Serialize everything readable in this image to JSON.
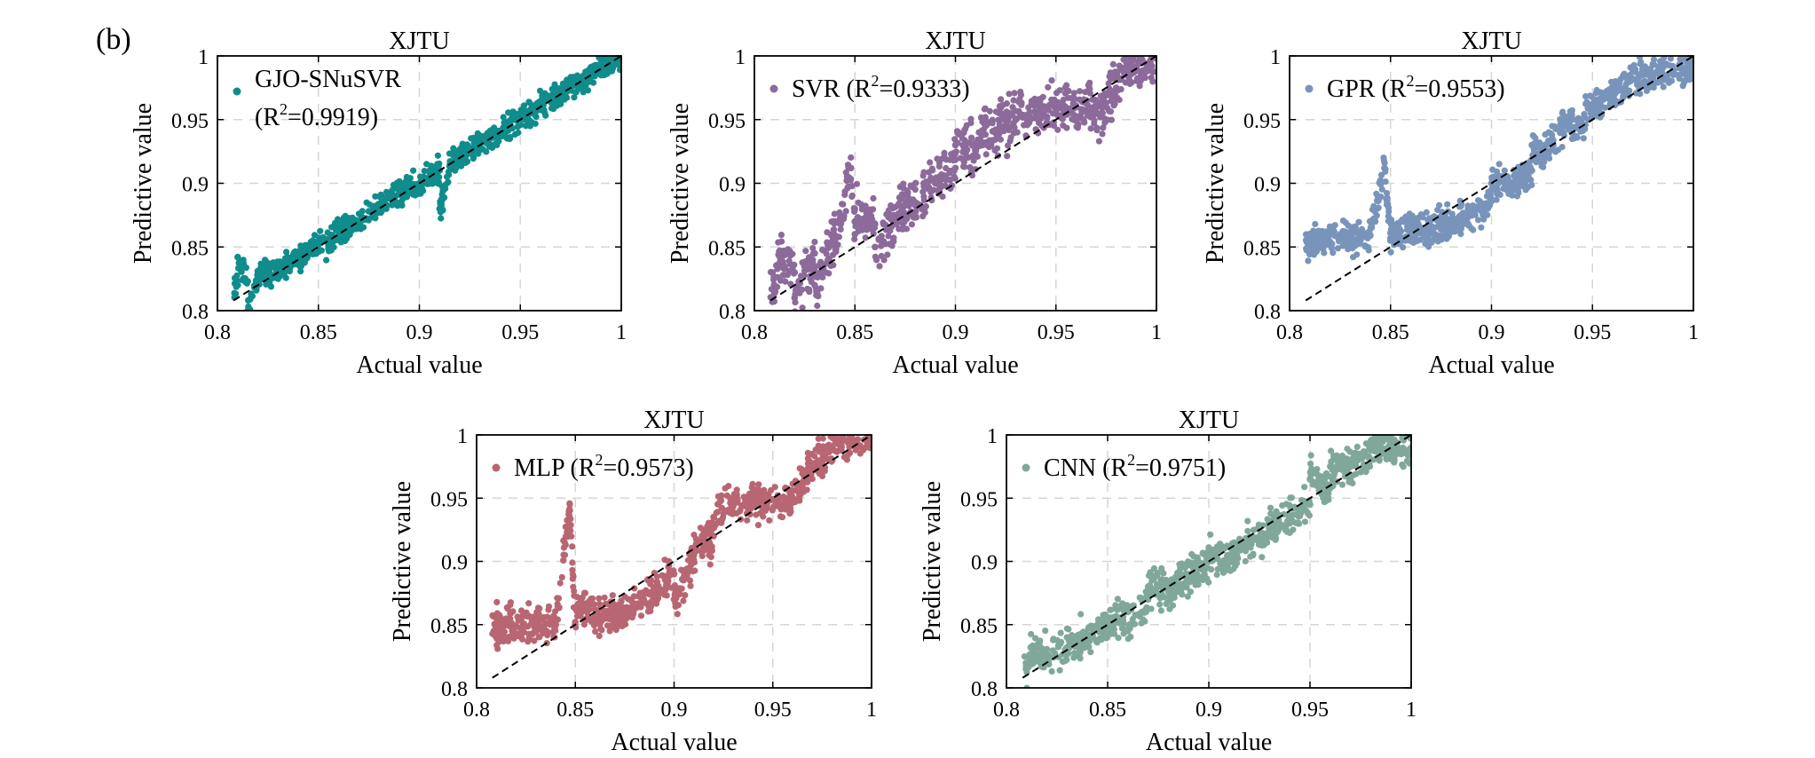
{
  "figure": {
    "panel_label": "(b)"
  },
  "chart_data": [
    {
      "type": "scatter",
      "title": "XJTU",
      "xlabel": "Actual value",
      "ylabel": "Predictive value",
      "xlim": [
        0.8,
        1.0
      ],
      "ylim": [
        0.8,
        1.0
      ],
      "xticks": [
        "0.8",
        "0.85",
        "0.9",
        "0.95",
        "1"
      ],
      "yticks": [
        "0.8",
        "0.85",
        "0.9",
        "0.95",
        "1"
      ],
      "grid": true,
      "color": "#108C8C",
      "legend": {
        "position": "top-left",
        "main": "GJO-SNuSVR",
        "second_line_pre": "(R",
        "sup": "2",
        "post": "=0.9919)"
      },
      "r2": 0.9919,
      "reference_line": {
        "from": [
          0.8,
          0.8
        ],
        "to": [
          1.0,
          1.0
        ],
        "style": "dashed"
      },
      "points": [
        [
          0.81,
          0.82
        ],
        [
          0.815,
          0.823
        ],
        [
          0.82,
          0.827
        ],
        [
          0.825,
          0.83
        ],
        [
          0.83,
          0.829
        ],
        [
          0.835,
          0.838
        ],
        [
          0.84,
          0.84
        ],
        [
          0.845,
          0.846
        ],
        [
          0.85,
          0.852
        ],
        [
          0.855,
          0.851
        ],
        [
          0.86,
          0.862
        ],
        [
          0.865,
          0.866
        ],
        [
          0.87,
          0.868
        ],
        [
          0.875,
          0.878
        ],
        [
          0.88,
          0.88
        ],
        [
          0.885,
          0.889
        ],
        [
          0.89,
          0.892
        ],
        [
          0.895,
          0.896
        ],
        [
          0.9,
          0.9
        ],
        [
          0.905,
          0.905
        ],
        [
          0.91,
          0.91
        ],
        [
          0.915,
          0.914
        ],
        [
          0.92,
          0.92
        ],
        [
          0.925,
          0.926
        ],
        [
          0.93,
          0.93
        ],
        [
          0.935,
          0.937
        ],
        [
          0.94,
          0.94
        ],
        [
          0.945,
          0.946
        ],
        [
          0.95,
          0.951
        ],
        [
          0.955,
          0.955
        ],
        [
          0.96,
          0.962
        ],
        [
          0.965,
          0.964
        ],
        [
          0.97,
          0.97
        ],
        [
          0.975,
          0.976
        ],
        [
          0.98,
          0.981
        ],
        [
          0.985,
          0.985
        ],
        [
          0.99,
          0.99
        ],
        [
          0.995,
          0.994
        ],
        [
          1.0,
          0.992
        ],
        [
          0.81,
          0.842
        ],
        [
          0.815,
          0.8
        ],
        [
          0.998,
          0.998
        ],
        [
          0.91,
          0.88
        ]
      ]
    },
    {
      "type": "scatter",
      "title": "XJTU",
      "xlabel": "Actual value",
      "ylabel": "Predictive value",
      "xlim": [
        0.8,
        1.0
      ],
      "ylim": [
        0.8,
        1.0
      ],
      "xticks": [
        "0.8",
        "0.85",
        "0.9",
        "0.95",
        "1"
      ],
      "yticks": [
        "0.8",
        "0.85",
        "0.9",
        "0.95",
        "1"
      ],
      "grid": true,
      "color": "#8C6A9A",
      "legend": {
        "position": "top-left",
        "main": "",
        "second_line_pre": "SVR (R",
        "sup": "2",
        "post": "=0.9333)"
      },
      "r2": 0.9333,
      "reference_line": {
        "from": [
          0.8,
          0.8
        ],
        "to": [
          1.0,
          1.0
        ],
        "style": "dashed"
      },
      "points": [
        [
          0.81,
          0.82
        ],
        [
          0.82,
          0.83
        ],
        [
          0.83,
          0.845
        ],
        [
          0.84,
          0.855
        ],
        [
          0.85,
          0.86
        ],
        [
          0.86,
          0.868
        ],
        [
          0.87,
          0.873
        ],
        [
          0.88,
          0.885
        ],
        [
          0.89,
          0.9
        ],
        [
          0.9,
          0.912
        ],
        [
          0.91,
          0.925
        ],
        [
          0.92,
          0.942
        ],
        [
          0.93,
          0.95
        ],
        [
          0.94,
          0.955
        ],
        [
          0.95,
          0.959
        ],
        [
          0.96,
          0.961
        ],
        [
          0.97,
          0.965
        ],
        [
          0.98,
          0.975
        ],
        [
          0.99,
          0.99
        ],
        [
          1.0,
          0.998
        ],
        [
          0.82,
          0.81
        ],
        [
          0.83,
          0.82
        ],
        [
          0.85,
          0.88
        ],
        [
          0.86,
          0.85
        ],
        [
          0.9,
          0.93
        ],
        [
          0.915,
          0.945
        ],
        [
          0.985,
          0.995
        ],
        [
          0.97,
          0.955
        ],
        [
          0.848,
          0.912
        ],
        [
          0.812,
          0.844
        ]
      ]
    },
    {
      "type": "scatter",
      "title": "XJTU",
      "xlabel": "Actual value",
      "ylabel": "Predictive value",
      "xlim": [
        0.8,
        1.0
      ],
      "ylim": [
        0.8,
        1.0
      ],
      "xticks": [
        "0.8",
        "0.85",
        "0.9",
        "0.95",
        "1"
      ],
      "yticks": [
        "0.8",
        "0.85",
        "0.9",
        "0.95",
        "1"
      ],
      "grid": true,
      "color": "#7894BA",
      "legend": {
        "position": "top-left",
        "main": "",
        "second_line_pre": "GPR (R",
        "sup": "2",
        "post": "=0.9553)"
      },
      "r2": 0.9553,
      "reference_line": {
        "from": [
          0.8,
          0.8
        ],
        "to": [
          1.0,
          1.0
        ],
        "style": "dashed"
      },
      "points": [
        [
          0.81,
          0.852
        ],
        [
          0.82,
          0.854
        ],
        [
          0.83,
          0.857
        ],
        [
          0.84,
          0.859
        ],
        [
          0.85,
          0.861
        ],
        [
          0.86,
          0.862
        ],
        [
          0.87,
          0.864
        ],
        [
          0.88,
          0.869
        ],
        [
          0.89,
          0.876
        ],
        [
          0.9,
          0.886
        ],
        [
          0.91,
          0.897
        ],
        [
          0.92,
          0.91
        ],
        [
          0.925,
          0.92
        ],
        [
          0.93,
          0.935
        ],
        [
          0.935,
          0.945
        ],
        [
          0.94,
          0.95
        ],
        [
          0.95,
          0.96
        ],
        [
          0.96,
          0.972
        ],
        [
          0.97,
          0.982
        ],
        [
          0.98,
          0.986
        ],
        [
          0.99,
          0.989
        ],
        [
          1.0,
          0.991
        ],
        [
          0.9,
          0.9
        ],
        [
          0.92,
          0.93
        ],
        [
          0.94,
          0.935
        ],
        [
          0.847,
          0.912
        ]
      ]
    },
    {
      "type": "scatter",
      "title": "XJTU",
      "xlabel": "Actual value",
      "ylabel": "Predictive value",
      "xlim": [
        0.8,
        1.0
      ],
      "ylim": [
        0.8,
        1.0
      ],
      "xticks": [
        "0.8",
        "0.85",
        "0.9",
        "0.95",
        "1"
      ],
      "yticks": [
        "0.8",
        "0.85",
        "0.9",
        "0.95",
        "1"
      ],
      "grid": true,
      "color": "#B86672",
      "legend": {
        "position": "top-left",
        "main": "",
        "second_line_pre": "MLP (R",
        "sup": "2",
        "post": "=0.9573)"
      },
      "r2": 0.9573,
      "reference_line": {
        "from": [
          0.8,
          0.8
        ],
        "to": [
          1.0,
          1.0
        ],
        "style": "dashed"
      },
      "points": [
        [
          0.81,
          0.849
        ],
        [
          0.82,
          0.849
        ],
        [
          0.83,
          0.849
        ],
        [
          0.84,
          0.85
        ],
        [
          0.85,
          0.852
        ],
        [
          0.86,
          0.856
        ],
        [
          0.87,
          0.86
        ],
        [
          0.88,
          0.866
        ],
        [
          0.89,
          0.878
        ],
        [
          0.9,
          0.89
        ],
        [
          0.91,
          0.905
        ],
        [
          0.92,
          0.92
        ],
        [
          0.93,
          0.948
        ],
        [
          0.94,
          0.949
        ],
        [
          0.95,
          0.949
        ],
        [
          0.96,
          0.95
        ],
        [
          0.965,
          0.96
        ],
        [
          0.97,
          0.975
        ],
        [
          0.98,
          0.99
        ],
        [
          0.99,
          0.998
        ],
        [
          1.0,
          1.0
        ],
        [
          0.85,
          0.863
        ],
        [
          0.87,
          0.852
        ],
        [
          0.9,
          0.87
        ],
        [
          0.92,
          0.935
        ],
        [
          0.847,
          0.941
        ]
      ]
    },
    {
      "type": "scatter",
      "title": "XJTU",
      "xlabel": "Actual value",
      "ylabel": "Predictive value",
      "xlim": [
        0.8,
        1.0
      ],
      "ylim": [
        0.8,
        1.0
      ],
      "xticks": [
        "0.8",
        "0.85",
        "0.9",
        "0.95",
        "1"
      ],
      "yticks": [
        "0.8",
        "0.85",
        "0.9",
        "0.95",
        "1"
      ],
      "grid": true,
      "color": "#80A89A",
      "legend": {
        "position": "top-left",
        "main": "",
        "second_line_pre": "CNN (R",
        "sup": "2",
        "post": "=0.9751)"
      },
      "r2": 0.9751,
      "reference_line": {
        "from": [
          0.8,
          0.8
        ],
        "to": [
          1.0,
          1.0
        ],
        "style": "dashed"
      },
      "points": [
        [
          0.81,
          0.815
        ],
        [
          0.82,
          0.825
        ],
        [
          0.83,
          0.832
        ],
        [
          0.84,
          0.84
        ],
        [
          0.85,
          0.85
        ],
        [
          0.86,
          0.86
        ],
        [
          0.87,
          0.87
        ],
        [
          0.88,
          0.878
        ],
        [
          0.89,
          0.89
        ],
        [
          0.9,
          0.9
        ],
        [
          0.91,
          0.905
        ],
        [
          0.92,
          0.915
        ],
        [
          0.93,
          0.925
        ],
        [
          0.94,
          0.935
        ],
        [
          0.95,
          0.945
        ],
        [
          0.96,
          0.958
        ],
        [
          0.97,
          0.975
        ],
        [
          0.98,
          0.988
        ],
        [
          0.99,
          0.99
        ],
        [
          1.0,
          0.99
        ],
        [
          0.86,
          0.845
        ],
        [
          0.87,
          0.88
        ],
        [
          0.95,
          0.965
        ],
        [
          0.96,
          0.975
        ],
        [
          0.98,
          0.995
        ],
        [
          0.812,
          0.832
        ]
      ]
    }
  ]
}
